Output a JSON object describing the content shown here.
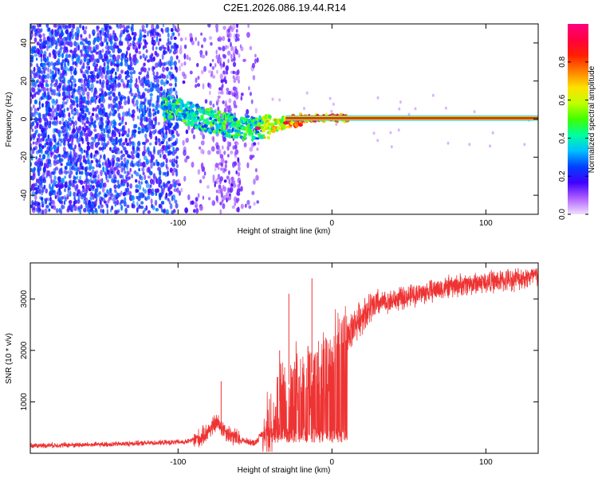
{
  "title": "C2E1.2026.086.19.44.R14",
  "chart_data": [
    {
      "type": "heatmap",
      "name": "spectrogram",
      "xlabel": "Height of straight line (km)",
      "ylabel": "Frequency (Hz)",
      "xlim": [
        -196,
        134
      ],
      "ylim": [
        -50,
        50
      ],
      "xticks": [
        -100,
        0,
        100
      ],
      "yticks": [
        -40,
        -20,
        0,
        20,
        40
      ],
      "colorbar": {
        "label": "Normalized spectral amplitude",
        "range": [
          0,
          1
        ],
        "ticks": [
          0.0,
          0.2,
          0.4,
          0.6,
          0.8
        ],
        "colors": [
          "#f0e0ff",
          "#b060ff",
          "#4000ff",
          "#0040ff",
          "#00c0ff",
          "#00ffa0",
          "#40ff00",
          "#c0ff00",
          "#ffe000",
          "#ff8000",
          "#ff2000",
          "#ff0040",
          "#ff0080"
        ]
      },
      "ridge": [
        {
          "x": -110,
          "f": 6
        },
        {
          "x": -100,
          "f": 5
        },
        {
          "x": -90,
          "f": 2
        },
        {
          "x": -80,
          "f": -1
        },
        {
          "x": -70,
          "f": -3
        },
        {
          "x": -60,
          "f": -4
        },
        {
          "x": -50,
          "f": -5
        },
        {
          "x": -40,
          "f": -4
        },
        {
          "x": -30,
          "f": -2
        },
        {
          "x": -20,
          "f": 0
        },
        {
          "x": -10,
          "f": 0.5
        },
        {
          "x": 0,
          "f": 0.5
        },
        {
          "x": 10,
          "f": 0.5
        },
        {
          "x": 134,
          "f": 0.5
        }
      ]
    },
    {
      "type": "line",
      "name": "snr",
      "xlabel": "Height of straight line (km)",
      "ylabel": "SNR (10 * v/v)",
      "xlim": [
        -196,
        134
      ],
      "ylim": [
        0,
        3700
      ],
      "xticks": [
        -100,
        0,
        100
      ],
      "yticks": [
        1000,
        2000,
        3000
      ],
      "color": "#ee3333",
      "envelope": [
        {
          "x": -196,
          "y": 150
        },
        {
          "x": -150,
          "y": 170
        },
        {
          "x": -120,
          "y": 200
        },
        {
          "x": -95,
          "y": 220
        },
        {
          "x": -85,
          "y": 300
        },
        {
          "x": -75,
          "y": 600
        },
        {
          "x": -68,
          "y": 400
        },
        {
          "x": -60,
          "y": 260
        },
        {
          "x": -50,
          "y": 200
        },
        {
          "x": -40,
          "y": 600
        },
        {
          "x": -30,
          "y": 1300
        },
        {
          "x": -20,
          "y": 1500
        },
        {
          "x": -10,
          "y": 1600
        },
        {
          "x": 0,
          "y": 1800
        },
        {
          "x": 10,
          "y": 2300
        },
        {
          "x": 20,
          "y": 2700
        },
        {
          "x": 30,
          "y": 2900
        },
        {
          "x": 50,
          "y": 3050
        },
        {
          "x": 70,
          "y": 3200
        },
        {
          "x": 90,
          "y": 3300
        },
        {
          "x": 110,
          "y": 3350
        },
        {
          "x": 134,
          "y": 3450
        }
      ],
      "peaks": [
        {
          "x": -72,
          "y": 1400
        },
        {
          "x": -34,
          "y": 2000
        },
        {
          "x": -28,
          "y": 3100
        },
        {
          "x": -13,
          "y": 3400
        }
      ]
    }
  ]
}
